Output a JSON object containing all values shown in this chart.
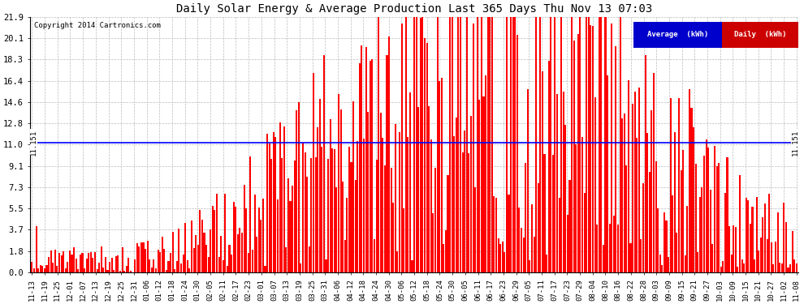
{
  "title": "Daily Solar Energy & Average Production Last 365 Days Thu Nov 13 07:03",
  "copyright": "Copyright 2014 Cartronics.com",
  "average_value": 11.151,
  "average_label": "11.151",
  "bar_color": "#FF0000",
  "average_line_color": "#0000FF",
  "background_color": "#FFFFFF",
  "plot_bg_color": "#FFFFFF",
  "grid_color": "#BBBBBB",
  "yticks": [
    0.0,
    1.8,
    3.7,
    5.5,
    7.3,
    9.1,
    11.0,
    12.8,
    14.6,
    16.4,
    18.3,
    20.1,
    21.9
  ],
  "ylim": [
    0.0,
    21.9
  ],
  "legend_avg_color": "#0000CC",
  "legend_daily_color": "#CC0000",
  "legend_avg_text": "Average  (kWh)",
  "legend_daily_text": "Daily  (kWh)",
  "xtick_labels": [
    "11-13",
    "11-19",
    "11-25",
    "12-01",
    "12-07",
    "12-13",
    "12-19",
    "12-25",
    "12-31",
    "01-06",
    "01-12",
    "01-18",
    "01-24",
    "01-30",
    "02-05",
    "02-11",
    "02-17",
    "02-23",
    "03-01",
    "03-07",
    "03-13",
    "03-19",
    "03-25",
    "03-31",
    "04-06",
    "04-12",
    "04-18",
    "04-24",
    "04-30",
    "05-06",
    "05-12",
    "05-18",
    "05-24",
    "05-30",
    "06-05",
    "06-11",
    "06-17",
    "06-23",
    "06-29",
    "07-05",
    "07-11",
    "07-17",
    "07-23",
    "07-29",
    "08-04",
    "08-10",
    "08-16",
    "08-22",
    "08-28",
    "09-03",
    "09-09",
    "09-15",
    "09-21",
    "09-27",
    "10-03",
    "10-09",
    "10-15",
    "10-21",
    "10-27",
    "11-02",
    "11-08"
  ],
  "num_bars": 365,
  "seed": 42,
  "bar_width": 0.8,
  "figsize": [
    9.9,
    3.75
  ],
  "dpi": 100
}
